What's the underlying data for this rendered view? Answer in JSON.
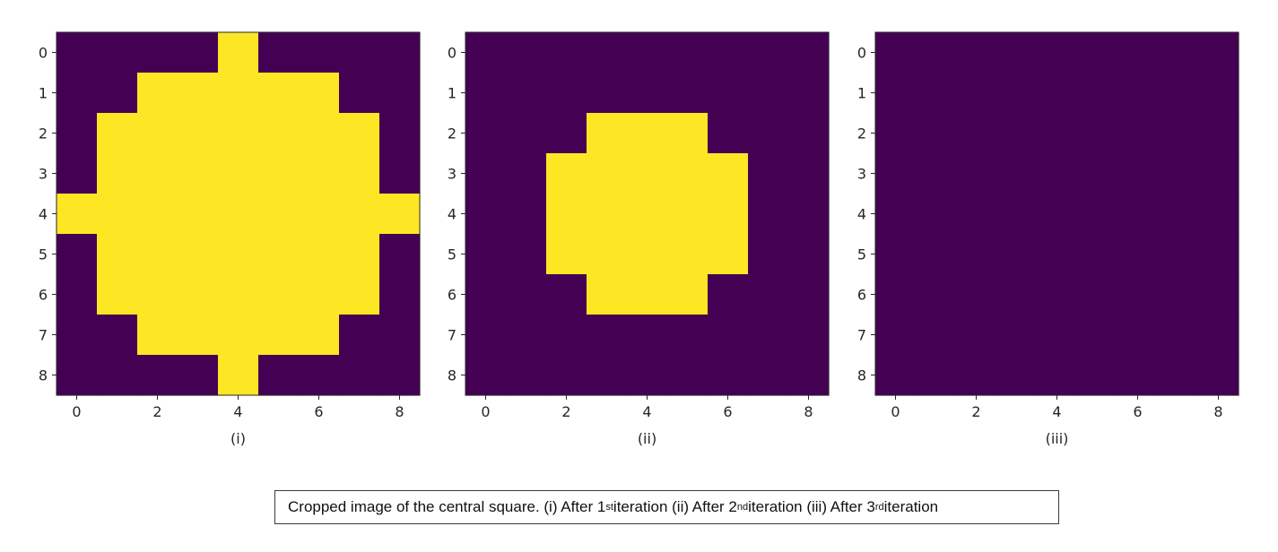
{
  "colors": {
    "off": "#440154",
    "on": "#fde725",
    "axis": "#262626"
  },
  "chart_data": [
    {
      "type": "heatmap",
      "label": "(i)",
      "rows": [
        "0",
        "1",
        "2",
        "3",
        "4",
        "5",
        "6",
        "7",
        "8"
      ],
      "x_ticks": [
        "0",
        "2",
        "4",
        "6",
        "8"
      ],
      "y_ticks": [
        "0",
        "1",
        "2",
        "3",
        "4",
        "5",
        "6",
        "7",
        "8"
      ],
      "xlim": [
        -0.5,
        8.5
      ],
      "ylim": [
        8.5,
        -0.5
      ],
      "values": [
        [
          0,
          0,
          0,
          0,
          1,
          0,
          0,
          0,
          0
        ],
        [
          0,
          0,
          1,
          1,
          1,
          1,
          1,
          0,
          0
        ],
        [
          0,
          1,
          1,
          1,
          1,
          1,
          1,
          1,
          0
        ],
        [
          0,
          1,
          1,
          1,
          1,
          1,
          1,
          1,
          0
        ],
        [
          1,
          1,
          1,
          1,
          1,
          1,
          1,
          1,
          1
        ],
        [
          0,
          1,
          1,
          1,
          1,
          1,
          1,
          1,
          0
        ],
        [
          0,
          1,
          1,
          1,
          1,
          1,
          1,
          1,
          0
        ],
        [
          0,
          0,
          1,
          1,
          1,
          1,
          1,
          0,
          0
        ],
        [
          0,
          0,
          0,
          0,
          1,
          0,
          0,
          0,
          0
        ]
      ]
    },
    {
      "type": "heatmap",
      "label": "(ii)",
      "x_ticks": [
        "0",
        "2",
        "4",
        "6",
        "8"
      ],
      "y_ticks": [
        "0",
        "1",
        "2",
        "3",
        "4",
        "5",
        "6",
        "7",
        "8"
      ],
      "xlim": [
        -0.5,
        8.5
      ],
      "ylim": [
        8.5,
        -0.5
      ],
      "values": [
        [
          0,
          0,
          0,
          0,
          0,
          0,
          0,
          0,
          0
        ],
        [
          0,
          0,
          0,
          0,
          0,
          0,
          0,
          0,
          0
        ],
        [
          0,
          0,
          0,
          1,
          1,
          1,
          0,
          0,
          0
        ],
        [
          0,
          0,
          1,
          1,
          1,
          1,
          1,
          0,
          0
        ],
        [
          0,
          0,
          1,
          1,
          1,
          1,
          1,
          0,
          0
        ],
        [
          0,
          0,
          1,
          1,
          1,
          1,
          1,
          0,
          0
        ],
        [
          0,
          0,
          0,
          1,
          1,
          1,
          0,
          0,
          0
        ],
        [
          0,
          0,
          0,
          0,
          0,
          0,
          0,
          0,
          0
        ],
        [
          0,
          0,
          0,
          0,
          0,
          0,
          0,
          0,
          0
        ]
      ]
    },
    {
      "type": "heatmap",
      "label": "(iii)",
      "x_ticks": [
        "0",
        "2",
        "4",
        "6",
        "8"
      ],
      "y_ticks": [
        "0",
        "1",
        "2",
        "3",
        "4",
        "5",
        "6",
        "7",
        "8"
      ],
      "xlim": [
        -0.5,
        8.5
      ],
      "ylim": [
        8.5,
        -0.5
      ],
      "values": [
        [
          0,
          0,
          0,
          0,
          0,
          0,
          0,
          0,
          0
        ],
        [
          0,
          0,
          0,
          0,
          0,
          0,
          0,
          0,
          0
        ],
        [
          0,
          0,
          0,
          0,
          0,
          0,
          0,
          0,
          0
        ],
        [
          0,
          0,
          0,
          0,
          0,
          0,
          0,
          0,
          0
        ],
        [
          0,
          0,
          0,
          0,
          0,
          0,
          0,
          0,
          0
        ],
        [
          0,
          0,
          0,
          0,
          0,
          0,
          0,
          0,
          0
        ],
        [
          0,
          0,
          0,
          0,
          0,
          0,
          0,
          0,
          0
        ],
        [
          0,
          0,
          0,
          0,
          0,
          0,
          0,
          0,
          0
        ],
        [
          0,
          0,
          0,
          0,
          0,
          0,
          0,
          0,
          0
        ]
      ]
    }
  ],
  "caption": {
    "p1": "Cropped image of the central square. (i) After 1",
    "s1": "st",
    "p2": " iteration (ii) After 2",
    "s2": "nd",
    "p3": " iteration (iii) After 3",
    "s3": "rd",
    "p4": " iteration"
  }
}
